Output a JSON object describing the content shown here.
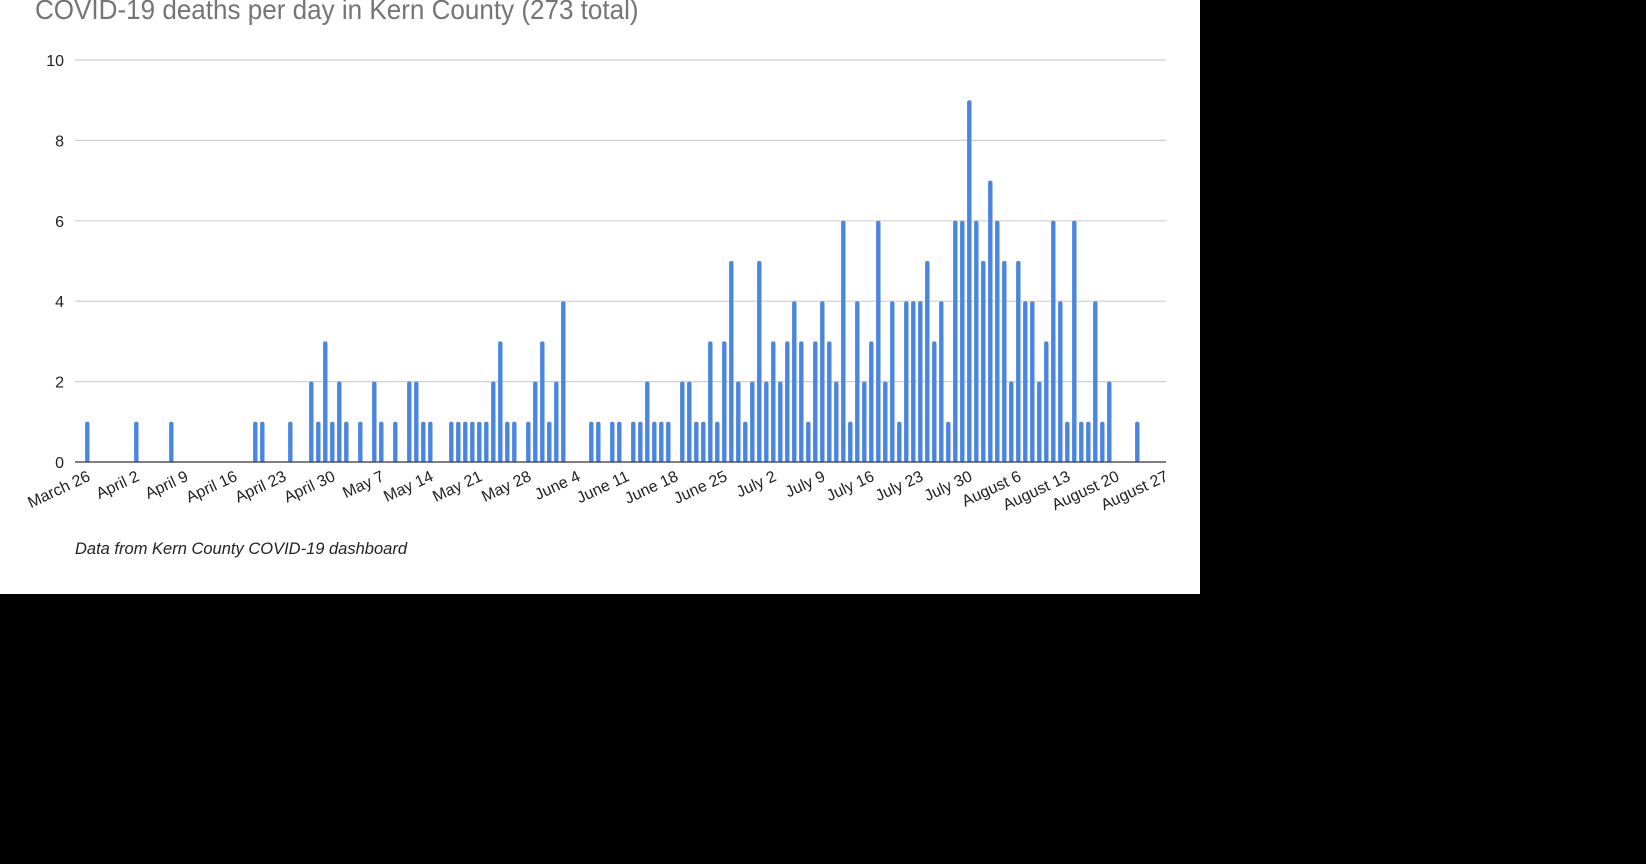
{
  "chart_data": {
    "type": "bar",
    "title": "COVID-19 deaths per day in Kern County (273 total)",
    "source_note": "Data from Kern County COVID-19 dashboard",
    "xlabel": "",
    "ylabel": "",
    "x_range": [
      "March 26",
      "August 27"
    ],
    "ylim": [
      0,
      10
    ],
    "y_ticks": [
      "0",
      "2",
      "4",
      "6",
      "8",
      "10"
    ],
    "x_tick_labels": [
      "March 26",
      "April 2",
      "April 9",
      "April 16",
      "April 23",
      "April 30",
      "May 7",
      "May 14",
      "May 21",
      "May 28",
      "June 4",
      "June 11",
      "June 18",
      "June 25",
      "July 2",
      "July 9",
      "July 16",
      "July 23",
      "July 30",
      "August 6",
      "August 13",
      "August 20",
      "August 27"
    ],
    "grid": true,
    "legend": "none",
    "bar_color": "#4a86e0",
    "x": [
      "March 26",
      "April 2",
      "April 7",
      "April 19",
      "April 20",
      "April 24",
      "April 27",
      "April 28",
      "April 29",
      "April 30",
      "May 1",
      "May 2",
      "May 4",
      "May 6",
      "May 7",
      "May 9",
      "May 11",
      "May 12",
      "May 13",
      "May 14",
      "May 17",
      "May 18",
      "May 19",
      "May 20",
      "May 21",
      "May 22",
      "May 23",
      "May 24",
      "May 25",
      "May 26",
      "May 28",
      "May 29",
      "May 30",
      "May 31",
      "June 1",
      "June 2",
      "June 6",
      "June 7",
      "June 9",
      "June 10",
      "June 12",
      "June 13",
      "June 14",
      "June 15",
      "June 16",
      "June 17",
      "June 19",
      "June 20",
      "June 21",
      "June 22",
      "June 23",
      "June 24",
      "June 25",
      "June 26",
      "June 27",
      "June 28",
      "June 29",
      "June 30",
      "July 1",
      "July 2",
      "July 3",
      "July 4",
      "July 5",
      "July 6",
      "July 7",
      "July 8",
      "July 9",
      "July 10",
      "July 11",
      "July 12",
      "July 13",
      "July 14",
      "July 15",
      "July 16",
      "July 17",
      "July 18",
      "July 19",
      "July 20",
      "July 21",
      "July 22",
      "July 23",
      "July 24",
      "July 25",
      "July 26",
      "July 27",
      "July 28",
      "July 29",
      "July 30",
      "July 31",
      "August 1",
      "August 2",
      "August 3",
      "August 4",
      "August 5",
      "August 6",
      "August 7",
      "August 8",
      "August 9",
      "August 10",
      "August 11",
      "August 12",
      "August 13",
      "August 14",
      "August 15",
      "August 16",
      "August 17",
      "August 18",
      "August 19",
      "August 23"
    ],
    "values": [
      1,
      1,
      1,
      1,
      1,
      1,
      2,
      1,
      3,
      1,
      2,
      1,
      1,
      2,
      1,
      1,
      2,
      2,
      1,
      1,
      1,
      1,
      1,
      1,
      1,
      1,
      2,
      3,
      1,
      1,
      1,
      2,
      3,
      1,
      2,
      4,
      1,
      1,
      1,
      1,
      1,
      1,
      2,
      1,
      1,
      1,
      2,
      2,
      1,
      1,
      3,
      1,
      3,
      5,
      2,
      1,
      2,
      5,
      2,
      3,
      2,
      3,
      4,
      3,
      1,
      3,
      4,
      3,
      2,
      6,
      1,
      4,
      2,
      3,
      6,
      2,
      4,
      1,
      4,
      4,
      4,
      5,
      3,
      4,
      1,
      6,
      6,
      9,
      6,
      5,
      7,
      6,
      5,
      2,
      5,
      4,
      4,
      2,
      3,
      6,
      4,
      1,
      6,
      1,
      1,
      4,
      1,
      2,
      1
    ]
  }
}
